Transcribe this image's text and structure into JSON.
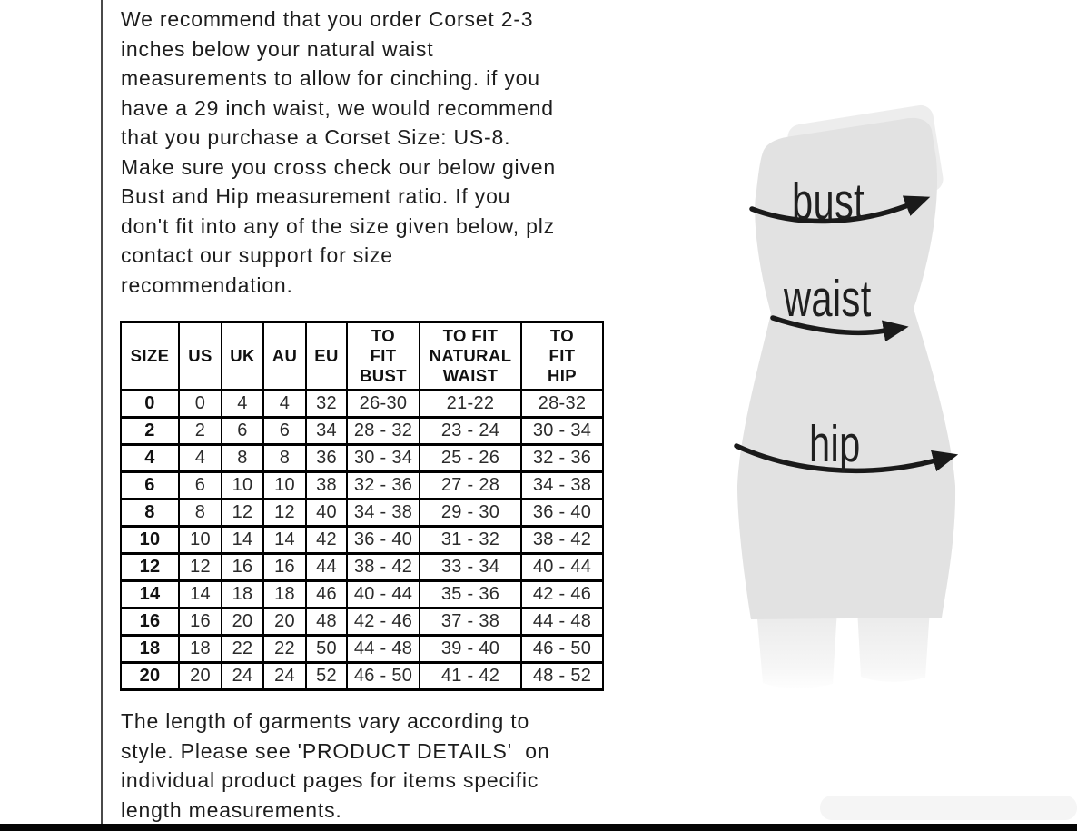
{
  "intro_paragraph": "We recommend that you order Corset 2-3\ninches below your natural waist\nmeasurements to allow for cinching. if you\nhave a 29 inch waist, we would recommend\nthat you purchase a Corset Size: US-8.\nMake sure you cross check our below given\nBust and Hip measurement ratio. If you\ndon't fit into any of the size given below, plz\ncontact our support for size\nrecommendation.",
  "size_table": {
    "headers": [
      "SIZE",
      "US",
      "UK",
      "AU",
      "EU",
      "TO\nFIT\nBUST",
      "TO FIT\nNATURAL\nWAIST",
      "TO\nFIT\nHIP"
    ],
    "rows": [
      [
        "0",
        "0",
        "4",
        "4",
        "32",
        "26-30",
        "21-22",
        "28-32"
      ],
      [
        "2",
        "2",
        "6",
        "6",
        "34",
        "28 - 32",
        "23 - 24",
        "30 - 34"
      ],
      [
        "4",
        "4",
        "8",
        "8",
        "36",
        "30 - 34",
        "25 - 26",
        "32 - 36"
      ],
      [
        "6",
        "6",
        "10",
        "10",
        "38",
        "32 - 36",
        "27 - 28",
        "34 - 38"
      ],
      [
        "8",
        "8",
        "12",
        "12",
        "40",
        "34 - 38",
        "29 - 30",
        "36 - 40"
      ],
      [
        "10",
        "10",
        "14",
        "14",
        "42",
        "36 - 40",
        "31 - 32",
        "38 - 42"
      ],
      [
        "12",
        "12",
        "16",
        "16",
        "44",
        "38 - 42",
        "33 - 34",
        "40 - 44"
      ],
      [
        "14",
        "14",
        "18",
        "18",
        "46",
        "40 - 44",
        "35 - 36",
        "42 - 46"
      ],
      [
        "16",
        "16",
        "20",
        "20",
        "48",
        "42 - 46",
        "37 - 38",
        "44 - 48"
      ],
      [
        "18",
        "18",
        "22",
        "22",
        "50",
        "44 - 48",
        "39 - 40",
        "46 - 50"
      ],
      [
        "20",
        "20",
        "24",
        "24",
        "52",
        "46 - 50",
        "41 - 42",
        "48 - 52"
      ]
    ]
  },
  "footer_paragraph": "The length of garments vary according to\nstyle. Please see 'PRODUCT DETAILS'  on\nindividual product pages for items specific\nlength measurements.",
  "figure": {
    "labels": {
      "bust": "bust",
      "waist": "waist",
      "hip": "hip"
    },
    "silhouette_color": "#e2e2e2",
    "leg_color": "#ededed",
    "arrow_color": "#1a1a1a"
  },
  "colors": {
    "text": "#1d1d1d",
    "table_border": "#000000",
    "divider_line": "#4a4a4a",
    "bottom_bar": "#050505",
    "background": "#ffffff"
  }
}
